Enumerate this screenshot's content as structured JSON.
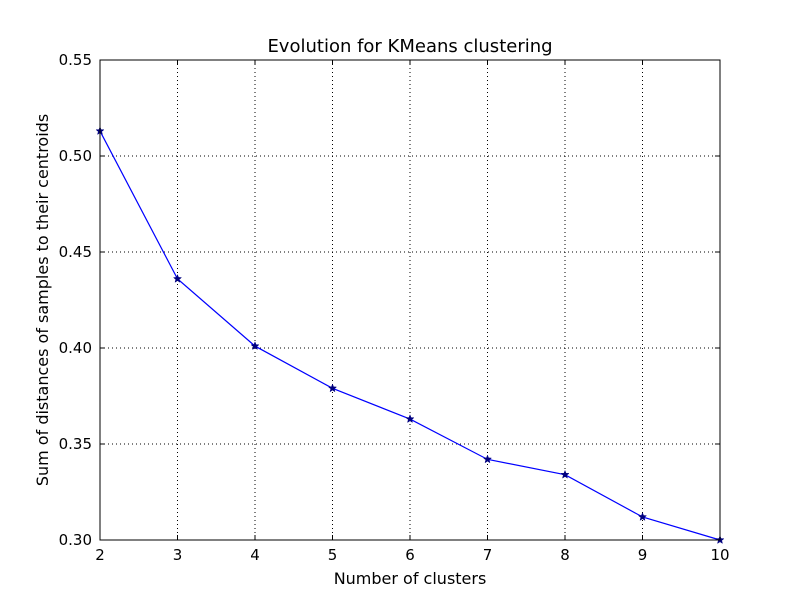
{
  "colors": {
    "line": "#0000ff",
    "marker": "#000080",
    "grid": "#000000",
    "axes": "#000000",
    "background": "#ffffff"
  },
  "chart_data": {
    "type": "line",
    "title": "Evolution for KMeans clustering",
    "xlabel": "Number of clusters",
    "ylabel": "Sum of distances of samples to their centroids",
    "xlim": [
      2,
      10
    ],
    "ylim": [
      0.3,
      0.55
    ],
    "xticks": [
      2,
      3,
      4,
      5,
      6,
      7,
      8,
      9,
      10
    ],
    "xtick_labels": [
      "2",
      "3",
      "4",
      "5",
      "6",
      "7",
      "8",
      "9",
      "10"
    ],
    "yticks": [
      0.3,
      0.35,
      0.4,
      0.45,
      0.5,
      0.55
    ],
    "ytick_labels": [
      "0.30",
      "0.35",
      "0.40",
      "0.45",
      "0.50",
      "0.55"
    ],
    "grid": true,
    "marker": "star",
    "x": [
      2,
      3,
      4,
      5,
      6,
      7,
      8,
      9,
      10
    ],
    "y": [
      0.513,
      0.436,
      0.401,
      0.379,
      0.363,
      0.342,
      0.334,
      0.312,
      0.3
    ]
  }
}
